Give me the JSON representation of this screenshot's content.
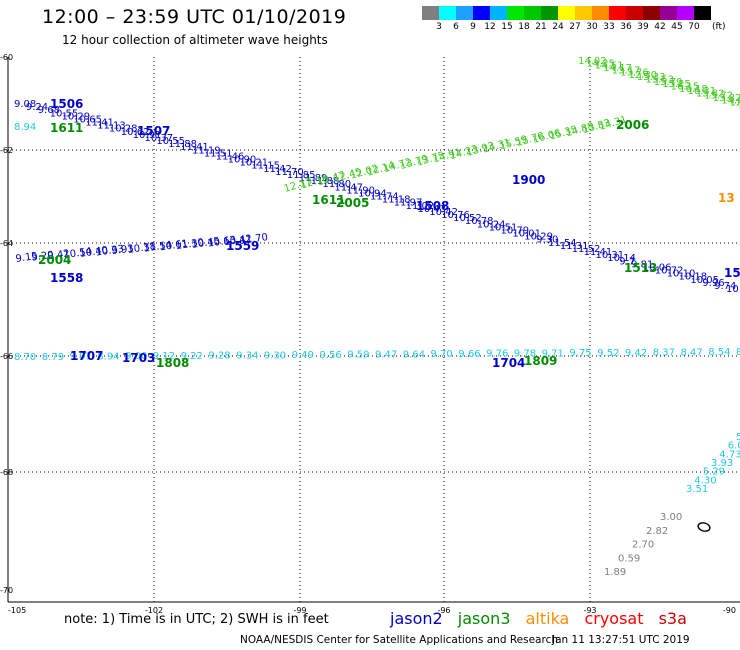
{
  "header": {
    "title": "12:00 – 23:59 UTC 01/10/2019",
    "subtitle": "12 hour collection of altimeter wave heights"
  },
  "colorbar": {
    "colors": [
      "#7f7f7f",
      "#00ffff",
      "#1ea0ff",
      "#0000ff",
      "#00b4ff",
      "#00e600",
      "#00c800",
      "#009600",
      "#ffff00",
      "#ffc800",
      "#ff8c00",
      "#ff0000",
      "#c80000",
      "#8c0000",
      "#960096",
      "#b400ff",
      "#000000"
    ],
    "labels": [
      "3",
      "6",
      "9",
      "12",
      "15",
      "18",
      "21",
      "24",
      "27",
      "30",
      "33",
      "36",
      "39",
      "42",
      "45",
      "70"
    ],
    "unit": "(ft)"
  },
  "axes": {
    "lat_labels": [
      "-60",
      "-62",
      "-64",
      "-66",
      "-68",
      "-70"
    ],
    "lon_labels": [
      "-105",
      "-102",
      "-99",
      "-96",
      "-93",
      "-90"
    ]
  },
  "colors": {
    "jason2": "#0000cc",
    "jason3": "#008c00",
    "jason3_light": "#44cc22",
    "altika": "#ff8c00",
    "cryosat": "#ff0000",
    "s3a": "#cc0000",
    "cyan": "#22c8e6",
    "gray": "#808080"
  },
  "tracks": {
    "jason2_upper": [
      "9.08",
      "9.24",
      "9.68",
      "10.55",
      "10.29",
      "10.65",
      "11.41",
      "11.13",
      "10.28",
      "10.62",
      "10.91",
      "10.37",
      "10.55",
      "11.88",
      "11.41",
      "11.19",
      "11.51",
      "11.46",
      "10.90",
      "10.21",
      "11.15",
      "11.42",
      "11.70",
      "11.85",
      "11.89",
      "11.88",
      "11.80",
      "11.47",
      "11.90",
      "10.94",
      "11.74",
      "11.18",
      "11.97",
      "11.02",
      "10.43",
      "10.42",
      "10.76",
      "10.52",
      "10.78",
      "10.24",
      "10.51",
      "10.79",
      "10.01",
      "10.29",
      "9.30",
      "11.54",
      "11.31",
      "11.52",
      "11.41",
      "10.31",
      "10.14",
      "9.7",
      "9.81",
      "10.06",
      "10.72",
      "10.10",
      "10.18",
      "10.05",
      "9.96",
      "9.74",
      "10.20"
    ],
    "jason2_lower": [
      "9.15",
      "9.20",
      "9.42",
      "10.54",
      "10.40",
      "10.33",
      "9.93",
      "10.38",
      "11.54",
      "10.61",
      "11.30",
      "10.45",
      "10.63",
      "10.42",
      "11.70"
    ],
    "jason3_green": [
      "12.17",
      "12.16",
      "12.47",
      "12.45",
      "12.02",
      "12.14",
      "14.72",
      "13.79",
      "13.75",
      "14.91",
      "14.23",
      "13.93",
      "14.31",
      "15.59",
      "15.76",
      "16.06",
      "15.35",
      "14.88",
      "13.83",
      "14.31"
    ],
    "jason3_upper": [
      "14.02",
      "14.25",
      "14.51",
      "14.17",
      "13.17",
      "13.76",
      "12.30",
      "15.33",
      "15.53",
      "15.79",
      "15.25",
      "16.15",
      "16.18",
      "16.31",
      "15.82",
      "15.72",
      "13.82",
      "14.01",
      "12.66",
      "12.14"
    ],
    "cyan_row": [
      "8.70",
      "8.79",
      "9.07",
      "8.94",
      "9.00",
      "9.12",
      "9.22",
      "9.28",
      "9.34",
      "9.30",
      "9.49",
      "9.56",
      "9.59",
      "9.47",
      "9.64",
      "9.70",
      "9.66",
      "9.76",
      "9.78",
      "9.71",
      "9.75",
      "9.52",
      "9.42",
      "8.37",
      "8.47",
      "8.54",
      "8.07"
    ],
    "cyan_south": [
      "5",
      "6.0",
      "4.73",
      "3.93",
      "5.29",
      "4.30",
      "3.51"
    ],
    "gray_south": [
      "3.00",
      "2.82",
      "2.70",
      "0.59",
      "1.89"
    ],
    "altika_value": "13",
    "jason2_edge": "15"
  },
  "time_labels": {
    "t1506": "1506",
    "t1507": "1507",
    "t1611_left": "1611",
    "t1611_mid": "1611",
    "t2005": "2005",
    "t1508": "1508",
    "t1900": "1900",
    "t2006": "2006",
    "t2004": "2004",
    "t1559": "1559",
    "t1558": "1558",
    "t1513": "1513",
    "t1707": "1707",
    "t1703": "1703",
    "t1808": "1808",
    "t1704": "1704",
    "t1809": "1809",
    "t8_94": "8.94"
  },
  "footer": {
    "note": "note:  1) Time is in UTC;  2) SWH is in feet",
    "legend": {
      "jason2": "jason2",
      "jason3": "jason3",
      "altika": "altika",
      "cryosat": "cryosat",
      "s3a": "s3a"
    },
    "credit": "NOAA/NESDIS Center for Satellite Applications and Research",
    "stamp": "Jan 11 13:27:51 UTC 2019"
  }
}
